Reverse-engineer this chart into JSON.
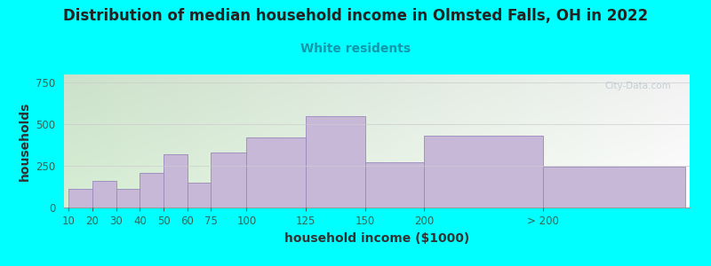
{
  "title": "Distribution of median household income in Olmsted Falls, OH in 2022",
  "subtitle": "White residents",
  "xlabel": "household income ($1000)",
  "ylabel": "households",
  "background_color": "#00FFFF",
  "bar_color": "#C8B8D8",
  "bar_edge_color": "#9988BB",
  "title_fontsize": 12,
  "subtitle_fontsize": 10,
  "subtitle_color": "#1199AA",
  "axis_label_fontsize": 10,
  "tick_fontsize": 8.5,
  "ylim": [
    0,
    800
  ],
  "yticks": [
    0,
    250,
    500,
    750
  ],
  "categories": [
    "10",
    "20",
    "30",
    "40",
    "50",
    "60",
    "75",
    "100",
    "125",
    "150",
    "200",
    "> 200"
  ],
  "values": [
    110,
    160,
    110,
    210,
    320,
    150,
    330,
    420,
    550,
    270,
    430,
    245
  ],
  "left_edges": [
    0,
    10,
    20,
    30,
    40,
    50,
    60,
    75,
    100,
    125,
    150,
    200
  ],
  "widths": [
    10,
    10,
    10,
    10,
    10,
    10,
    15,
    25,
    25,
    25,
    50,
    60
  ],
  "watermark": "City-Data.com",
  "plot_bg_left_color": "#D8EED0",
  "plot_bg_right_color": "#F8F8F8"
}
